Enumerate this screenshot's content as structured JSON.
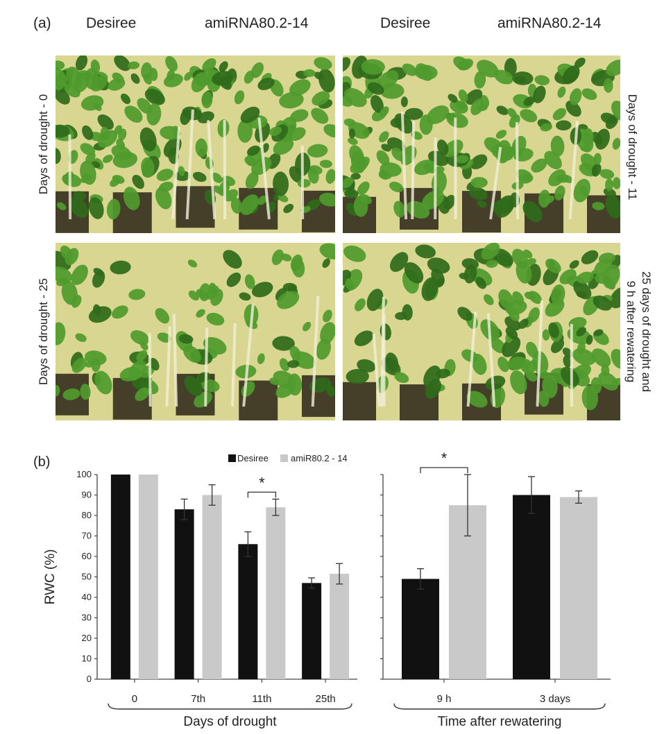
{
  "panel_a": {
    "label": "(a)",
    "columns_left": [
      "Desiree",
      "amiRNA80.2-14"
    ],
    "columns_right": [
      "Desiree",
      "amiRNA80.2-14"
    ],
    "row_labels": [
      "Days of drought - 0",
      "Days of drought - 11",
      "Days of drought - 25"
    ],
    "row_label_rewater_line1": "25 days of drought and",
    "row_label_rewater_line2": "9 h after rewatering"
  },
  "colors": {
    "desiree": "#111111",
    "amir": "#c9c9c9",
    "photo_bg": "#d9d692",
    "leaf": "#4f9a2c",
    "leaf_dark": "#2f6a1a",
    "pot": "#2a2418"
  },
  "chart_data": [
    {
      "type": "bar",
      "panel_label": "(b)",
      "ylabel": "RWC (%)",
      "xlabel": "Days of drought",
      "ylim": [
        0,
        100
      ],
      "yticks": [
        0,
        10,
        20,
        30,
        40,
        50,
        60,
        70,
        80,
        90,
        100
      ],
      "categories": [
        "0",
        "7th",
        "11th",
        "25th"
      ],
      "series": [
        {
          "name": "Desiree",
          "values": [
            100,
            83,
            66,
            47
          ],
          "errors": [
            0,
            5,
            6,
            2.5
          ]
        },
        {
          "name": "amiR80.2 - 14",
          "values": [
            100,
            90,
            84,
            51.5
          ],
          "errors": [
            0,
            5,
            4,
            5
          ]
        }
      ],
      "significance": [
        {
          "category": "11th",
          "label": "*"
        }
      ],
      "legend_position": "top"
    },
    {
      "type": "bar",
      "xlabel": "Time after rewatering",
      "ylim": [
        0,
        100
      ],
      "categories": [
        "9 h",
        "3 days"
      ],
      "series": [
        {
          "name": "Desiree",
          "values": [
            49,
            90
          ],
          "errors": [
            5,
            9
          ]
        },
        {
          "name": "amiR80.2 - 14",
          "values": [
            85,
            89
          ],
          "errors": [
            15,
            3
          ]
        }
      ],
      "significance": [
        {
          "category": "9 h",
          "label": "*"
        }
      ]
    }
  ]
}
